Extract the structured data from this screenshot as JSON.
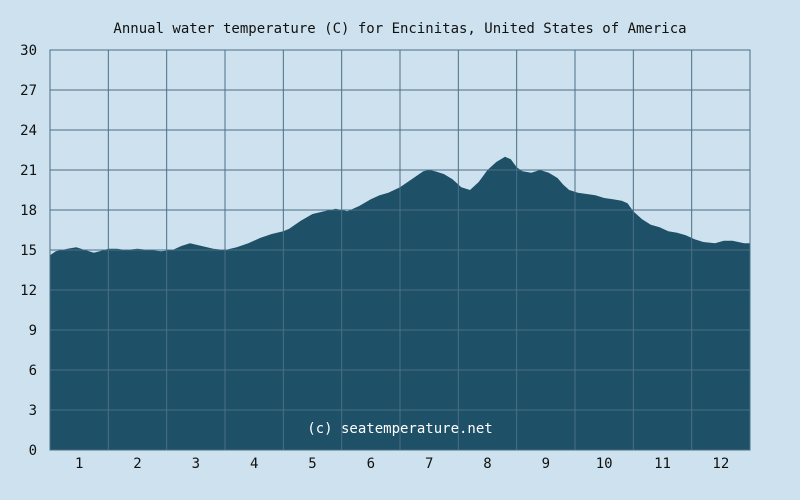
{
  "chart_data": {
    "type": "area",
    "title": "Annual water temperature (C) for Encinitas, United States of America",
    "xlabel": "",
    "ylabel": "",
    "x_ticks": [
      "1",
      "2",
      "3",
      "4",
      "5",
      "6",
      "7",
      "8",
      "9",
      "10",
      "11",
      "12"
    ],
    "y_ticks": [
      "0",
      "3",
      "6",
      "9",
      "12",
      "15",
      "18",
      "21",
      "24",
      "27",
      "30"
    ],
    "ylim": [
      0,
      30
    ],
    "xlim": [
      0.5,
      12.5
    ],
    "grid": true,
    "credit": "(c) seatemperature.net",
    "series": [
      {
        "x": [
          0.5,
          0.6,
          0.8,
          0.95,
          1.1,
          1.25,
          1.35,
          1.5,
          1.65,
          1.8,
          2.0,
          2.2,
          2.4,
          2.6,
          2.75,
          2.9,
          3.1,
          3.3,
          3.5,
          3.7,
          3.9,
          4.1,
          4.3,
          4.5,
          4.6,
          4.8,
          5.0,
          5.2,
          5.4,
          5.6,
          5.8,
          6.0,
          6.15,
          6.3,
          6.5,
          6.7,
          6.9,
          7.0,
          7.1,
          7.25,
          7.4,
          7.55,
          7.7,
          7.85,
          8.0,
          8.15,
          8.3,
          8.4,
          8.5,
          8.6,
          8.75,
          8.9,
          9.05,
          9.2,
          9.3,
          9.4,
          9.55,
          9.7,
          9.85,
          10.0,
          10.15,
          10.3,
          10.4,
          10.5,
          10.65,
          10.8,
          10.95,
          11.1,
          11.25,
          11.4,
          11.55,
          11.7,
          11.9,
          12.05,
          12.2,
          12.3,
          12.4,
          12.5
        ],
        "values": [
          14.6,
          14.9,
          15.1,
          15.2,
          15.0,
          14.8,
          14.9,
          15.1,
          15.1,
          15.0,
          15.1,
          15.0,
          14.9,
          15.0,
          15.3,
          15.5,
          15.3,
          15.1,
          15.0,
          15.2,
          15.5,
          15.9,
          16.2,
          16.4,
          16.6,
          17.2,
          17.7,
          17.9,
          18.1,
          17.9,
          18.3,
          18.8,
          19.1,
          19.3,
          19.7,
          20.3,
          20.9,
          21.0,
          20.9,
          20.7,
          20.3,
          19.7,
          19.5,
          20.1,
          21.0,
          21.6,
          22.0,
          21.8,
          21.2,
          20.9,
          20.8,
          21.0,
          20.8,
          20.4,
          19.9,
          19.5,
          19.3,
          19.2,
          19.1,
          18.9,
          18.8,
          18.7,
          18.5,
          17.9,
          17.3,
          16.9,
          16.7,
          16.4,
          16.3,
          16.1,
          15.8,
          15.6,
          15.5,
          15.7,
          15.7,
          15.6,
          15.5,
          15.5
        ]
      }
    ],
    "colors": {
      "background": "#cde2ee",
      "area": "#1e5068",
      "grid": "#4a6f85",
      "text": "#111111",
      "credit_text": "#ffffff"
    }
  }
}
